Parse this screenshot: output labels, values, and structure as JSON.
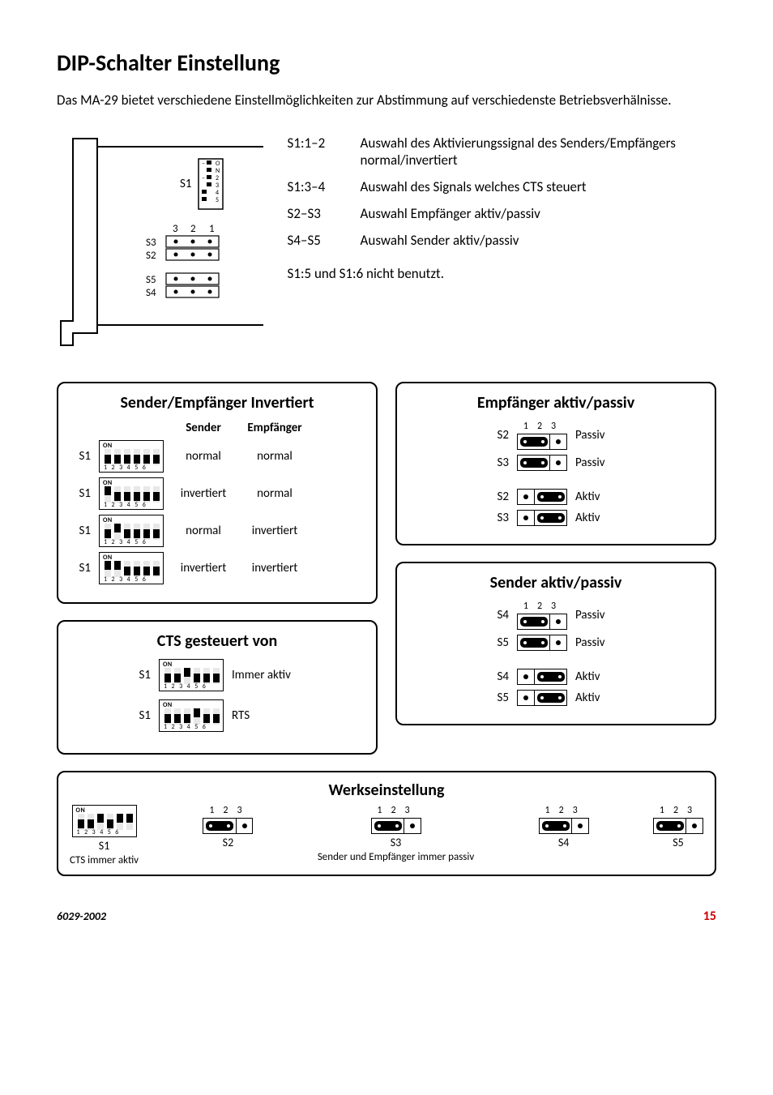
{
  "title": "DIP-Schalter Einstellung",
  "intro": "Das MA-29 bietet verschiedene Einstellmöglichkeiten zur Abstimmung auf verschiedenste Betriebsverhälnisse.",
  "defs": [
    {
      "k": "S1:1–2",
      "v": "Auswahl des Aktivierungssignal des Senders/Empfängers normal/invertiert"
    },
    {
      "k": "S1:3–4",
      "v": "Auswahl des Signals welches CTS steuert"
    },
    {
      "k": "S2–S3",
      "v": "Auswahl Empfänger aktiv/passiv"
    },
    {
      "k": "S4–S5",
      "v": "Auswahl Sender aktiv/passiv"
    }
  ],
  "note": "S1:5 und S1:6 nicht benutzt.",
  "panel1": {
    "title": "Sender/Empfänger Invertiert",
    "headers": {
      "a": "Sender",
      "b": "Empfänger"
    },
    "rows": [
      {
        "label": "S1",
        "sw": [
          0,
          0,
          0,
          0,
          0,
          0
        ],
        "a": "normal",
        "b": "normal"
      },
      {
        "label": "S1",
        "sw": [
          1,
          0,
          0,
          0,
          0,
          0
        ],
        "a": "invertiert",
        "b": "normal"
      },
      {
        "label": "S1",
        "sw": [
          0,
          1,
          0,
          0,
          0,
          0
        ],
        "a": "normal",
        "b": "invertiert"
      },
      {
        "label": "S1",
        "sw": [
          1,
          1,
          0,
          0,
          0,
          0
        ],
        "a": "invertiert",
        "b": "invertiert"
      }
    ]
  },
  "panel2": {
    "title": "CTS gesteuert von",
    "rows": [
      {
        "label": "S1",
        "sw": [
          0,
          0,
          1,
          0,
          0,
          0
        ],
        "a": "Immer aktiv"
      },
      {
        "label": "S1",
        "sw": [
          0,
          0,
          0,
          1,
          0,
          0
        ],
        "a": "RTS"
      }
    ]
  },
  "panel3": {
    "title": "Empfänger aktiv/passiv",
    "groups": [
      [
        {
          "label": "S2",
          "link": "12",
          "a": "Passiv"
        },
        {
          "label": "S3",
          "link": "12",
          "a": "Passiv"
        }
      ],
      [
        {
          "label": "S2",
          "link": "23",
          "a": "Aktiv"
        },
        {
          "label": "S3",
          "link": "23",
          "a": "Aktiv"
        }
      ]
    ]
  },
  "panel4": {
    "title": "Sender aktiv/passiv",
    "groups": [
      [
        {
          "label": "S4",
          "link": "12",
          "a": "Passiv"
        },
        {
          "label": "S5",
          "link": "12",
          "a": "Passiv"
        }
      ],
      [
        {
          "label": "S4",
          "link": "23",
          "a": "Aktiv"
        },
        {
          "label": "S5",
          "link": "23",
          "a": "Aktiv"
        }
      ]
    ]
  },
  "factory": {
    "title": "Werkseinstellung",
    "s1": {
      "label": "S1",
      "sub": "CTS immer aktiv",
      "sw": [
        0,
        0,
        1,
        0,
        1,
        1
      ]
    },
    "jumpers": [
      {
        "label": "S2",
        "link": "12"
      },
      {
        "label": "S3",
        "link": "12"
      },
      {
        "label": "S4",
        "link": "12"
      },
      {
        "label": "S5",
        "link": "12"
      }
    ],
    "jsub": "Sender und Empfänger immer passiv"
  },
  "numlabel3": "1  2  3",
  "footer": {
    "doc": "6029-2002",
    "page": "15"
  },
  "colors": {
    "accent": "#c00000",
    "slot": "#e8e8e8"
  }
}
